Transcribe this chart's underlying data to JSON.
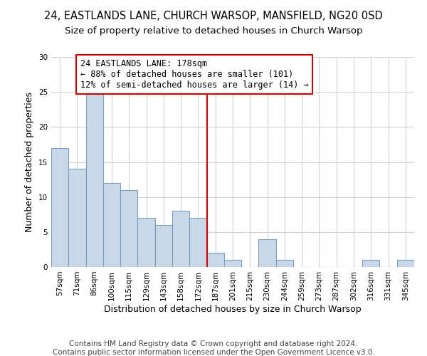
{
  "title_line1": "24, EASTLANDS LANE, CHURCH WARSOP, MANSFIELD, NG20 0SD",
  "title_line2": "Size of property relative to detached houses in Church Warsop",
  "xlabel": "Distribution of detached houses by size in Church Warsop",
  "ylabel": "Number of detached properties",
  "bar_labels": [
    "57sqm",
    "71sqm",
    "86sqm",
    "100sqm",
    "115sqm",
    "129sqm",
    "143sqm",
    "158sqm",
    "172sqm",
    "187sqm",
    "201sqm",
    "215sqm",
    "230sqm",
    "244sqm",
    "259sqm",
    "273sqm",
    "287sqm",
    "302sqm",
    "316sqm",
    "331sqm",
    "345sqm"
  ],
  "bar_values": [
    17,
    14,
    25,
    12,
    11,
    7,
    6,
    8,
    7,
    2,
    1,
    0,
    4,
    1,
    0,
    0,
    0,
    0,
    1,
    0,
    1
  ],
  "bar_color": "#c8d8e8",
  "bar_edge_color": "#7aa0be",
  "vline_x": 8.5,
  "vline_color": "#cc0000",
  "annotation_line1": "24 EASTLANDS LANE: 178sqm",
  "annotation_line2": "← 88% of detached houses are smaller (101)",
  "annotation_line3": "12% of semi-detached houses are larger (14) →",
  "box_edge_color": "#cc0000",
  "ylim": [
    0,
    30
  ],
  "yticks": [
    0,
    5,
    10,
    15,
    20,
    25,
    30
  ],
  "grid_color": "#d0d0d0",
  "footer_line1": "Contains HM Land Registry data © Crown copyright and database right 2024.",
  "footer_line2": "Contains public sector information licensed under the Open Government Licence v3.0.",
  "footer_fontsize": 7.5,
  "title_fontsize1": 10.5,
  "title_fontsize2": 9.5,
  "xlabel_fontsize": 9,
  "ylabel_fontsize": 9,
  "annotation_fontsize": 8.5,
  "tick_fontsize": 7.5
}
